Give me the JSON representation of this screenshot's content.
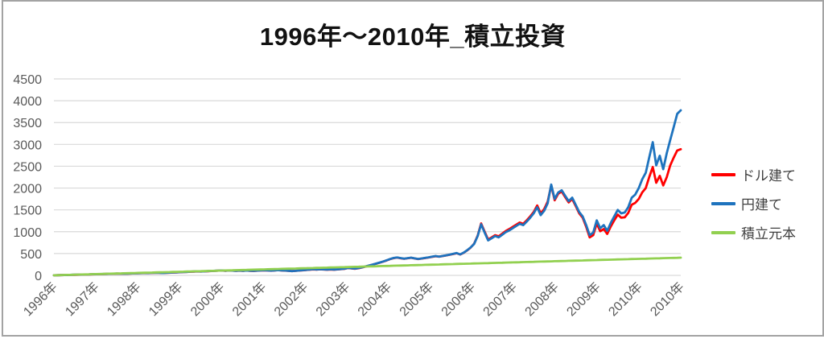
{
  "title": "1996年〜2010年_積立投資",
  "frame": {
    "border_color": "#a3a3a3",
    "background": "#ffffff"
  },
  "chart_data": {
    "type": "line",
    "title": "1996年〜2010年_積立投資",
    "grid": true,
    "legend_position": "right",
    "y_axis": {
      "min": 0,
      "max": 4500,
      "step": 500
    },
    "x_tick_labels": [
      "1996年",
      "1997年",
      "1998年",
      "1999年",
      "2000年",
      "2001年",
      "2002年",
      "2003年",
      "2004年",
      "2005年",
      "2006年",
      "2007年",
      "2008年",
      "2009年",
      "2010年",
      "2010年"
    ],
    "x_resolution": "monthly, Jan 1996 – Dec 2010",
    "series": [
      {
        "name": "ドル建て",
        "color": "#ff0000",
        "values": [
          1,
          3,
          5,
          7,
          9,
          11,
          13,
          15,
          17,
          19,
          21,
          24,
          26,
          28,
          30,
          33,
          35,
          37,
          40,
          38,
          41,
          39,
          43,
          46,
          48,
          51,
          54,
          52,
          56,
          59,
          57,
          53,
          57,
          61,
          65,
          69,
          72,
          75,
          79,
          83,
          87,
          91,
          88,
          92,
          96,
          100,
          104,
          108,
          111,
          106,
          112,
          108,
          103,
          109,
          105,
          110,
          106,
          102,
          107,
          113,
          117,
          112,
          107,
          113,
          119,
          114,
          109,
          104,
          97,
          103,
          110,
          117,
          123,
          130,
          137,
          132,
          139,
          134,
          129,
          135,
          130,
          136,
          143,
          150,
          169,
          160,
          152,
          165,
          182,
          202,
          223,
          245,
          267,
          290,
          315,
          342,
          372,
          395,
          407,
          393,
          379,
          391,
          403,
          387,
          373,
          385,
          397,
          411,
          425,
          439,
          427,
          442,
          457,
          473,
          489,
          507,
          477,
          517,
          572,
          637,
          724,
          910,
          1190,
          1000,
          820,
          870,
          920,
          895,
          955,
          1015,
          1060,
          1110,
          1160,
          1210,
          1180,
          1260,
          1350,
          1450,
          1600,
          1420,
          1520,
          1690,
          2060,
          1720,
          1870,
          1920,
          1790,
          1670,
          1750,
          1590,
          1420,
          1320,
          1110,
          870,
          920,
          1190,
          1010,
          1060,
          950,
          1120,
          1260,
          1390,
          1320,
          1330,
          1430,
          1620,
          1660,
          1750,
          1900,
          2000,
          2250,
          2480,
          2120,
          2280,
          2060,
          2250,
          2520,
          2700,
          2860,
          2890
        ]
      },
      {
        "name": "円建て",
        "color": "#1e73be",
        "values": [
          2,
          4,
          6,
          8,
          10,
          12,
          14,
          16,
          18,
          20,
          22,
          25,
          27,
          29,
          31,
          34,
          36,
          38,
          41,
          39,
          42,
          40,
          44,
          47,
          49,
          52,
          55,
          53,
          57,
          60,
          58,
          54,
          58,
          62,
          66,
          70,
          73,
          76,
          80,
          84,
          88,
          92,
          89,
          93,
          97,
          101,
          105,
          109,
          112,
          107,
          113,
          109,
          104,
          110,
          106,
          111,
          107,
          103,
          108,
          114,
          118,
          113,
          108,
          114,
          120,
          115,
          110,
          105,
          98,
          104,
          111,
          118,
          126,
          133,
          140,
          135,
          142,
          137,
          132,
          138,
          133,
          139,
          146,
          153,
          172,
          163,
          155,
          168,
          185,
          205,
          226,
          248,
          270,
          293,
          318,
          345,
          375,
          398,
          410,
          396,
          382,
          394,
          406,
          390,
          376,
          388,
          400,
          414,
          428,
          442,
          430,
          445,
          460,
          476,
          492,
          510,
          480,
          520,
          575,
          640,
          720,
          900,
          1170,
          980,
          800,
          850,
          900,
          870,
          930,
          990,
          1030,
          1080,
          1130,
          1180,
          1150,
          1230,
          1320,
          1420,
          1560,
          1380,
          1480,
          1650,
          2080,
          1750,
          1900,
          1950,
          1820,
          1700,
          1780,
          1620,
          1450,
          1350,
          1150,
          920,
          980,
          1260,
          1080,
          1150,
          1020,
          1200,
          1350,
          1500,
          1420,
          1440,
          1560,
          1780,
          1850,
          2000,
          2200,
          2350,
          2700,
          3050,
          2520,
          2740,
          2430,
          2800,
          3100,
          3400,
          3700,
          3780
        ]
      },
      {
        "name": "積立元本",
        "color": "#92d050",
        "linear": {
          "start": 2.25,
          "end": 405,
          "count": 180
        }
      }
    ]
  },
  "legend": {
    "items": [
      {
        "label": "ドル建て",
        "color": "#ff0000"
      },
      {
        "label": "円建て",
        "color": "#1e73be"
      },
      {
        "label": "積立元本",
        "color": "#92d050"
      }
    ]
  }
}
